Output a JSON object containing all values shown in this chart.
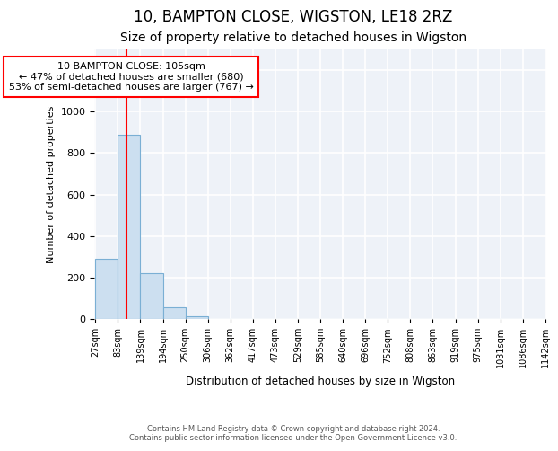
{
  "title1": "10, BAMPTON CLOSE, WIGSTON, LE18 2RZ",
  "title2": "Size of property relative to detached houses in Wigston",
  "xlabel": "Distribution of detached houses by size in Wigston",
  "ylabel": "Number of detached properties",
  "bin_labels": [
    "27sqm",
    "83sqm",
    "139sqm",
    "194sqm",
    "250sqm",
    "306sqm",
    "362sqm",
    "417sqm",
    "473sqm",
    "529sqm",
    "585sqm",
    "640sqm",
    "696sqm",
    "752sqm",
    "808sqm",
    "863sqm",
    "919sqm",
    "975sqm",
    "1031sqm",
    "1086sqm",
    "1142sqm"
  ],
  "counts": [
    290,
    890,
    220,
    55,
    15,
    0,
    0,
    0,
    0,
    0,
    0,
    0,
    0,
    0,
    0,
    0,
    0,
    0,
    0,
    0
  ],
  "bar_color": "#ccdff0",
  "bar_edge_color": "#7aafd4",
  "vline_index": 1.4,
  "vline_color": "red",
  "annotation_text": "10 BAMPTON CLOSE: 105sqm\n← 47% of detached houses are smaller (680)\n53% of semi-detached houses are larger (767) →",
  "annotation_box_color": "white",
  "annotation_box_edge": "red",
  "ylim": [
    0,
    1300
  ],
  "yticks": [
    0,
    200,
    400,
    600,
    800,
    1000,
    1200
  ],
  "footnote1": "Contains HM Land Registry data © Crown copyright and database right 2024.",
  "footnote2": "Contains public sector information licensed under the Open Government Licence v3.0.",
  "bg_color": "#eef2f8",
  "grid_color": "#ffffff",
  "title1_fontsize": 12,
  "title2_fontsize": 10
}
